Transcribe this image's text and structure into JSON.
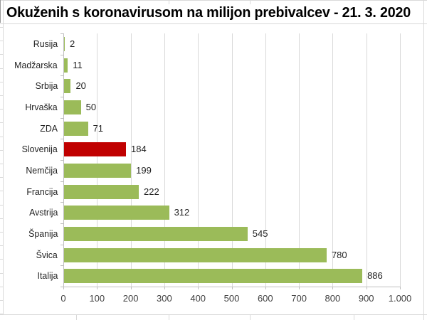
{
  "title": "Okuženih s koronavirusom na milijon prebivalcev - 21. 3. 2020",
  "chart_data": {
    "type": "bar",
    "orientation": "horizontal",
    "title": "Okuženih s koronavirusom na milijon prebivalcev - 21. 3. 2020",
    "categories": [
      "Rusija",
      "Madžarska",
      "Srbija",
      "Hrvaška",
      "ZDA",
      "Slovenija",
      "Nemčija",
      "Francija",
      "Avstrija",
      "Španija",
      "Švica",
      "Italija"
    ],
    "values": [
      2,
      11,
      20,
      50,
      71,
      184,
      199,
      222,
      312,
      545,
      780,
      886
    ],
    "data_labels": [
      "2",
      "11",
      "20",
      "50",
      "71",
      "184",
      "199",
      "222",
      "312",
      "545",
      "780",
      "886"
    ],
    "highlight_category": "Slovenija",
    "bar_color": "#9bbb59",
    "highlight_color": "#c00000",
    "xlim": [
      0,
      1000
    ],
    "x_ticks": [
      "0",
      "100",
      "200",
      "300",
      "400",
      "500",
      "600",
      "700",
      "800",
      "900",
      "1.000"
    ],
    "x_tick_values": [
      0,
      100,
      200,
      300,
      400,
      500,
      600,
      700,
      800,
      900,
      1000
    ],
    "grid": "vertical",
    "gridline_color": "#d9d9d9",
    "axis_color": "#bfbfbf",
    "legend": "none"
  }
}
